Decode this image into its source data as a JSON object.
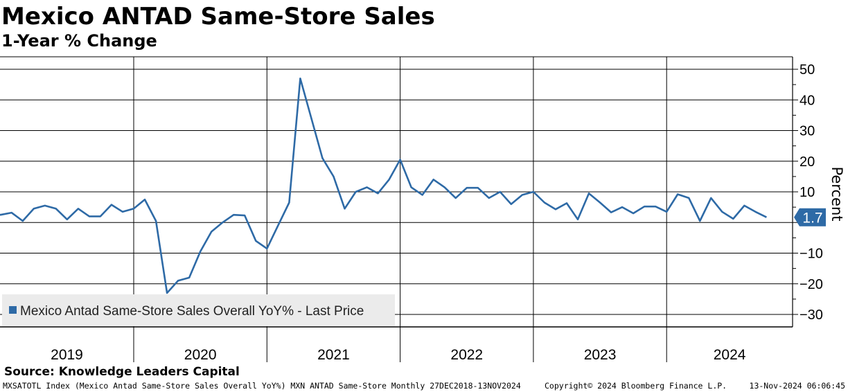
{
  "title": "Mexico ANTAD Same-Store Sales",
  "subtitle": "1-Year % Change",
  "source": "Source: Knowledge Leaders Capital",
  "footer": {
    "ticker_info": "MXSATOTL Index (Mexico Antad Same-Store Sales Overall YoY%) MXN ANTAD Same-Store  Monthly 27DEC2018-13NOV2024",
    "copyright": "Copyright© 2024 Bloomberg Finance L.P.",
    "timestamp": "13-Nov-2024 06:06:45"
  },
  "colors": {
    "series": "#2e6aa6",
    "grid": "#000000",
    "legend_bg": "#ebebeb",
    "last_label_bg": "#2e6aa6",
    "last_label_text": "#ffffff"
  },
  "chart_data": {
    "type": "line",
    "ylabel": "Percent",
    "ylim": [
      -31,
      54
    ],
    "yticks": [
      -30,
      -20,
      -10,
      0,
      10,
      20,
      30,
      40,
      50
    ],
    "ytick_labels": [
      "-30",
      "-20",
      "-10",
      "",
      "10",
      "20",
      "30",
      "40",
      "50"
    ],
    "grid": true,
    "legend_position": "bottom-left",
    "years": [
      "2019",
      "2020",
      "2021",
      "2022",
      "2023",
      "2024"
    ],
    "x_start": "2018-12",
    "x_end": "2024-10",
    "series": [
      {
        "name": "Mexico Antad Same-Store Sales Overall YoY% - Last Price",
        "x": [
          "2018-12",
          "2019-01",
          "2019-02",
          "2019-03",
          "2019-04",
          "2019-05",
          "2019-06",
          "2019-07",
          "2019-08",
          "2019-09",
          "2019-10",
          "2019-11",
          "2019-12",
          "2020-01",
          "2020-02",
          "2020-03",
          "2020-04",
          "2020-05",
          "2020-06",
          "2020-07",
          "2020-08",
          "2020-09",
          "2020-10",
          "2020-11",
          "2020-12",
          "2021-01",
          "2021-02",
          "2021-03",
          "2021-04",
          "2021-05",
          "2021-06",
          "2021-07",
          "2021-08",
          "2021-09",
          "2021-10",
          "2021-11",
          "2021-12",
          "2022-01",
          "2022-02",
          "2022-03",
          "2022-04",
          "2022-05",
          "2022-06",
          "2022-07",
          "2022-08",
          "2022-09",
          "2022-10",
          "2022-11",
          "2022-12",
          "2023-01",
          "2023-02",
          "2023-03",
          "2023-04",
          "2023-05",
          "2023-06",
          "2023-07",
          "2023-08",
          "2023-09",
          "2023-10",
          "2023-11",
          "2023-12",
          "2024-01",
          "2024-02",
          "2024-03",
          "2024-04",
          "2024-05",
          "2024-06",
          "2024-07",
          "2024-08",
          "2024-09",
          "2024-10"
        ],
        "values": [
          3.5,
          2.5,
          3.2,
          0.5,
          4.5,
          5.5,
          4.5,
          1.0,
          4.5,
          2.0,
          2.0,
          5.8,
          3.5,
          4.5,
          7.5,
          0.5,
          -23.0,
          -19.0,
          -18.0,
          -9.5,
          -3.0,
          0.0,
          2.5,
          2.3,
          -6.0,
          -8.5,
          -1.0,
          6.5,
          47.0,
          34.0,
          21.0,
          15.0,
          4.5,
          10.0,
          11.5,
          9.5,
          14.0,
          20.5,
          11.5,
          9.0,
          14.0,
          11.5,
          8.0,
          11.3,
          11.3,
          8.0,
          10.0,
          6.0,
          9.0,
          10.0,
          6.5,
          4.3,
          6.3,
          1.0,
          9.5,
          6.5,
          3.3,
          5.0,
          3.0,
          5.2,
          5.2,
          3.5,
          9.2,
          8.0,
          0.5,
          8.0,
          3.5,
          1.2,
          5.5,
          3.5,
          1.7
        ]
      }
    ],
    "last_value_label": "1.7"
  }
}
